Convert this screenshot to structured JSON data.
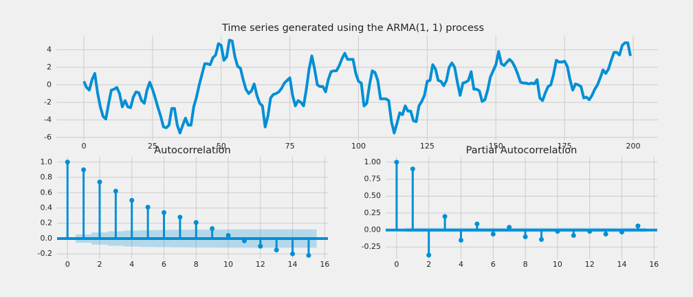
{
  "chart_data": [
    {
      "type": "line",
      "title": "Time series generated using the ARMA(1, 1) process",
      "color": "#008fd5",
      "grid": true,
      "x": [
        0,
        1,
        2,
        3,
        4,
        5,
        6,
        7,
        8,
        9,
        10,
        11,
        12,
        13,
        14,
        15,
        16,
        17,
        18,
        19,
        20,
        21,
        22,
        23,
        24,
        25,
        26,
        27,
        28,
        29,
        30,
        31,
        32,
        33,
        34,
        35,
        36,
        37,
        38,
        39,
        40,
        41,
        42,
        43,
        44,
        45,
        46,
        47,
        48,
        49,
        50,
        51,
        52,
        53,
        54,
        55,
        56,
        57,
        58,
        59,
        60,
        61,
        62,
        63,
        64,
        65,
        66,
        67,
        68,
        69,
        70,
        71,
        72,
        73,
        74,
        75,
        76,
        77,
        78,
        79,
        80,
        81,
        82,
        83,
        84,
        85,
        86,
        87,
        88,
        89,
        90,
        91,
        92,
        93,
        94,
        95,
        96,
        97,
        98,
        99,
        100,
        101,
        102,
        103,
        104,
        105,
        106,
        107,
        108,
        109,
        110,
        111,
        112,
        113,
        114,
        115,
        116,
        117,
        118,
        119,
        120,
        121,
        122,
        123,
        124,
        125,
        126,
        127,
        128,
        129,
        130,
        131,
        132,
        133,
        134,
        135,
        136,
        137,
        138,
        139,
        140,
        141,
        142,
        143,
        144,
        145,
        146,
        147,
        148,
        149,
        150,
        151,
        152,
        153,
        154,
        155,
        156,
        157,
        158,
        159,
        160,
        161,
        162,
        163,
        164,
        165,
        166,
        167,
        168,
        169,
        170,
        171,
        172,
        173,
        174,
        175,
        176,
        177,
        178,
        179,
        180,
        181,
        182,
        183,
        184,
        185,
        186,
        187,
        188,
        189,
        190,
        191,
        192,
        193,
        194,
        195,
        196,
        197,
        198,
        199
      ],
      "values": [
        0.4,
        -0.3,
        -0.6,
        0.6,
        1.3,
        -0.9,
        -2.5,
        -3.6,
        -3.9,
        -2.2,
        -0.6,
        -0.5,
        -0.3,
        -1.0,
        -2.5,
        -1.8,
        -2.5,
        -2.6,
        -1.4,
        -0.8,
        -0.9,
        -1.8,
        -2.1,
        -0.6,
        0.3,
        -0.5,
        -1.5,
        -2.6,
        -3.6,
        -4.8,
        -4.9,
        -4.6,
        -2.7,
        -2.7,
        -4.6,
        -5.5,
        -4.6,
        -3.8,
        -4.6,
        -4.6,
        -2.5,
        -1.4,
        0.0,
        1.2,
        2.4,
        2.4,
        2.3,
        3.1,
        3.4,
        4.7,
        4.5,
        2.8,
        3.2,
        5.1,
        5.0,
        3.2,
        2.1,
        1.9,
        0.6,
        -0.5,
        -1.0,
        -0.7,
        0.1,
        -1.2,
        -2.1,
        -2.4,
        -4.8,
        -3.6,
        -1.5,
        -1.1,
        -1.0,
        -0.8,
        -0.4,
        0.2,
        0.5,
        0.8,
        -1.2,
        -2.4,
        -1.8,
        -2.0,
        -2.4,
        -0.5,
        1.8,
        3.3,
        1.8,
        0.0,
        -0.2,
        -0.2,
        -0.8,
        0.6,
        1.5,
        1.6,
        1.6,
        2.2,
        3.0,
        3.6,
        2.9,
        2.9,
        2.9,
        1.3,
        0.4,
        0.2,
        -2.4,
        -2.1,
        0.0,
        1.6,
        1.4,
        0.5,
        -1.6,
        -1.6,
        -1.6,
        -1.8,
        -4.2,
        -5.5,
        -4.4,
        -3.2,
        -3.4,
        -2.4,
        -3.0,
        -3.0,
        -4.1,
        -4.2,
        -2.4,
        -1.9,
        -1.2,
        0.4,
        0.5,
        2.3,
        1.8,
        0.5,
        0.4,
        -0.1,
        0.5,
        2.0,
        2.5,
        2.0,
        0.3,
        -1.2,
        0.2,
        0.3,
        0.5,
        1.5,
        -0.5,
        -0.5,
        -0.7,
        -1.9,
        -1.7,
        -0.6,
        0.9,
        1.6,
        2.3,
        3.8,
        2.4,
        2.2,
        2.6,
        2.9,
        2.6,
        2.0,
        1.2,
        0.3,
        0.2,
        0.2,
        0.1,
        0.2,
        0.1,
        0.6,
        -1.5,
        -1.8,
        -0.9,
        -0.2,
        0.0,
        1.2,
        2.8,
        2.6,
        2.6,
        2.7,
        2.1,
        0.6,
        -0.6,
        0.1,
        0.0,
        -0.2,
        -1.5,
        -1.4,
        -1.7,
        -1.2,
        -0.5,
        0.0,
        0.8,
        1.7,
        1.3,
        1.8,
        2.8,
        3.7,
        3.7,
        3.4,
        4.5,
        4.8,
        4.8,
        3.3
      ],
      "xlim": [
        -10,
        209
      ],
      "xticks": [
        0,
        25,
        50,
        75,
        100,
        125,
        150,
        175,
        200
      ],
      "ylim": [
        -6.4,
        5.6
      ],
      "yticks": [
        -6,
        -4,
        -2,
        0,
        2,
        4
      ]
    },
    {
      "type": "stem",
      "title": "Autocorrelation",
      "color": "#008fd5",
      "grid": true,
      "x": [
        0,
        1,
        2,
        3,
        4,
        5,
        6,
        7,
        8,
        9,
        10,
        11,
        12,
        13,
        14,
        15
      ],
      "values": [
        1.0,
        0.9,
        0.74,
        0.62,
        0.5,
        0.41,
        0.34,
        0.28,
        0.21,
        0.13,
        0.04,
        -0.03,
        -0.1,
        -0.15,
        -0.2,
        -0.22
      ],
      "band": [
        null,
        0.055,
        0.08,
        0.095,
        0.105,
        0.11,
        0.113,
        0.115,
        0.117,
        0.118,
        0.119,
        0.12,
        0.12,
        0.12,
        0.12,
        0.12
      ],
      "xlim": [
        -0.65,
        16.2
      ],
      "xticks": [
        0,
        2,
        4,
        6,
        8,
        10,
        12,
        14,
        16
      ],
      "ylim": [
        -0.27,
        1.07
      ],
      "yticks": [
        -0.2,
        {
          "value": 0,
          "label": "0.0"
        },
        0.2,
        0.4,
        0.6,
        0.8,
        {
          "value": 1,
          "label": "1.0"
        }
      ]
    },
    {
      "type": "stem",
      "title": "Partial Autocorrelation",
      "color": "#008fd5",
      "grid": true,
      "x": [
        0,
        1,
        2,
        3,
        4,
        5,
        6,
        7,
        8,
        9,
        10,
        11,
        12,
        13,
        14,
        15
      ],
      "values": [
        1.0,
        0.9,
        -0.37,
        0.2,
        -0.15,
        0.09,
        -0.06,
        0.04,
        -0.1,
        -0.14,
        -0.02,
        -0.08,
        -0.02,
        -0.06,
        -0.03,
        0.06
      ],
      "band": [
        null,
        0.03,
        0.03,
        0.03,
        0.03,
        0.03,
        0.03,
        0.03,
        0.03,
        0.03,
        0.03,
        0.03,
        0.03,
        0.03,
        0.03,
        0.03
      ],
      "xlim": [
        -0.68,
        16.2
      ],
      "xticks": [
        0,
        2,
        4,
        6,
        8,
        10,
        12,
        14,
        16
      ],
      "ylim": [
        -0.43,
        1.08
      ],
      "yticks": [
        -0.25,
        {
          "value": 0,
          "label": "0.00"
        },
        0.25,
        {
          "value": 0.5,
          "label": "0.50"
        },
        0.75,
        {
          "value": 1,
          "label": "1.00"
        }
      ]
    }
  ]
}
